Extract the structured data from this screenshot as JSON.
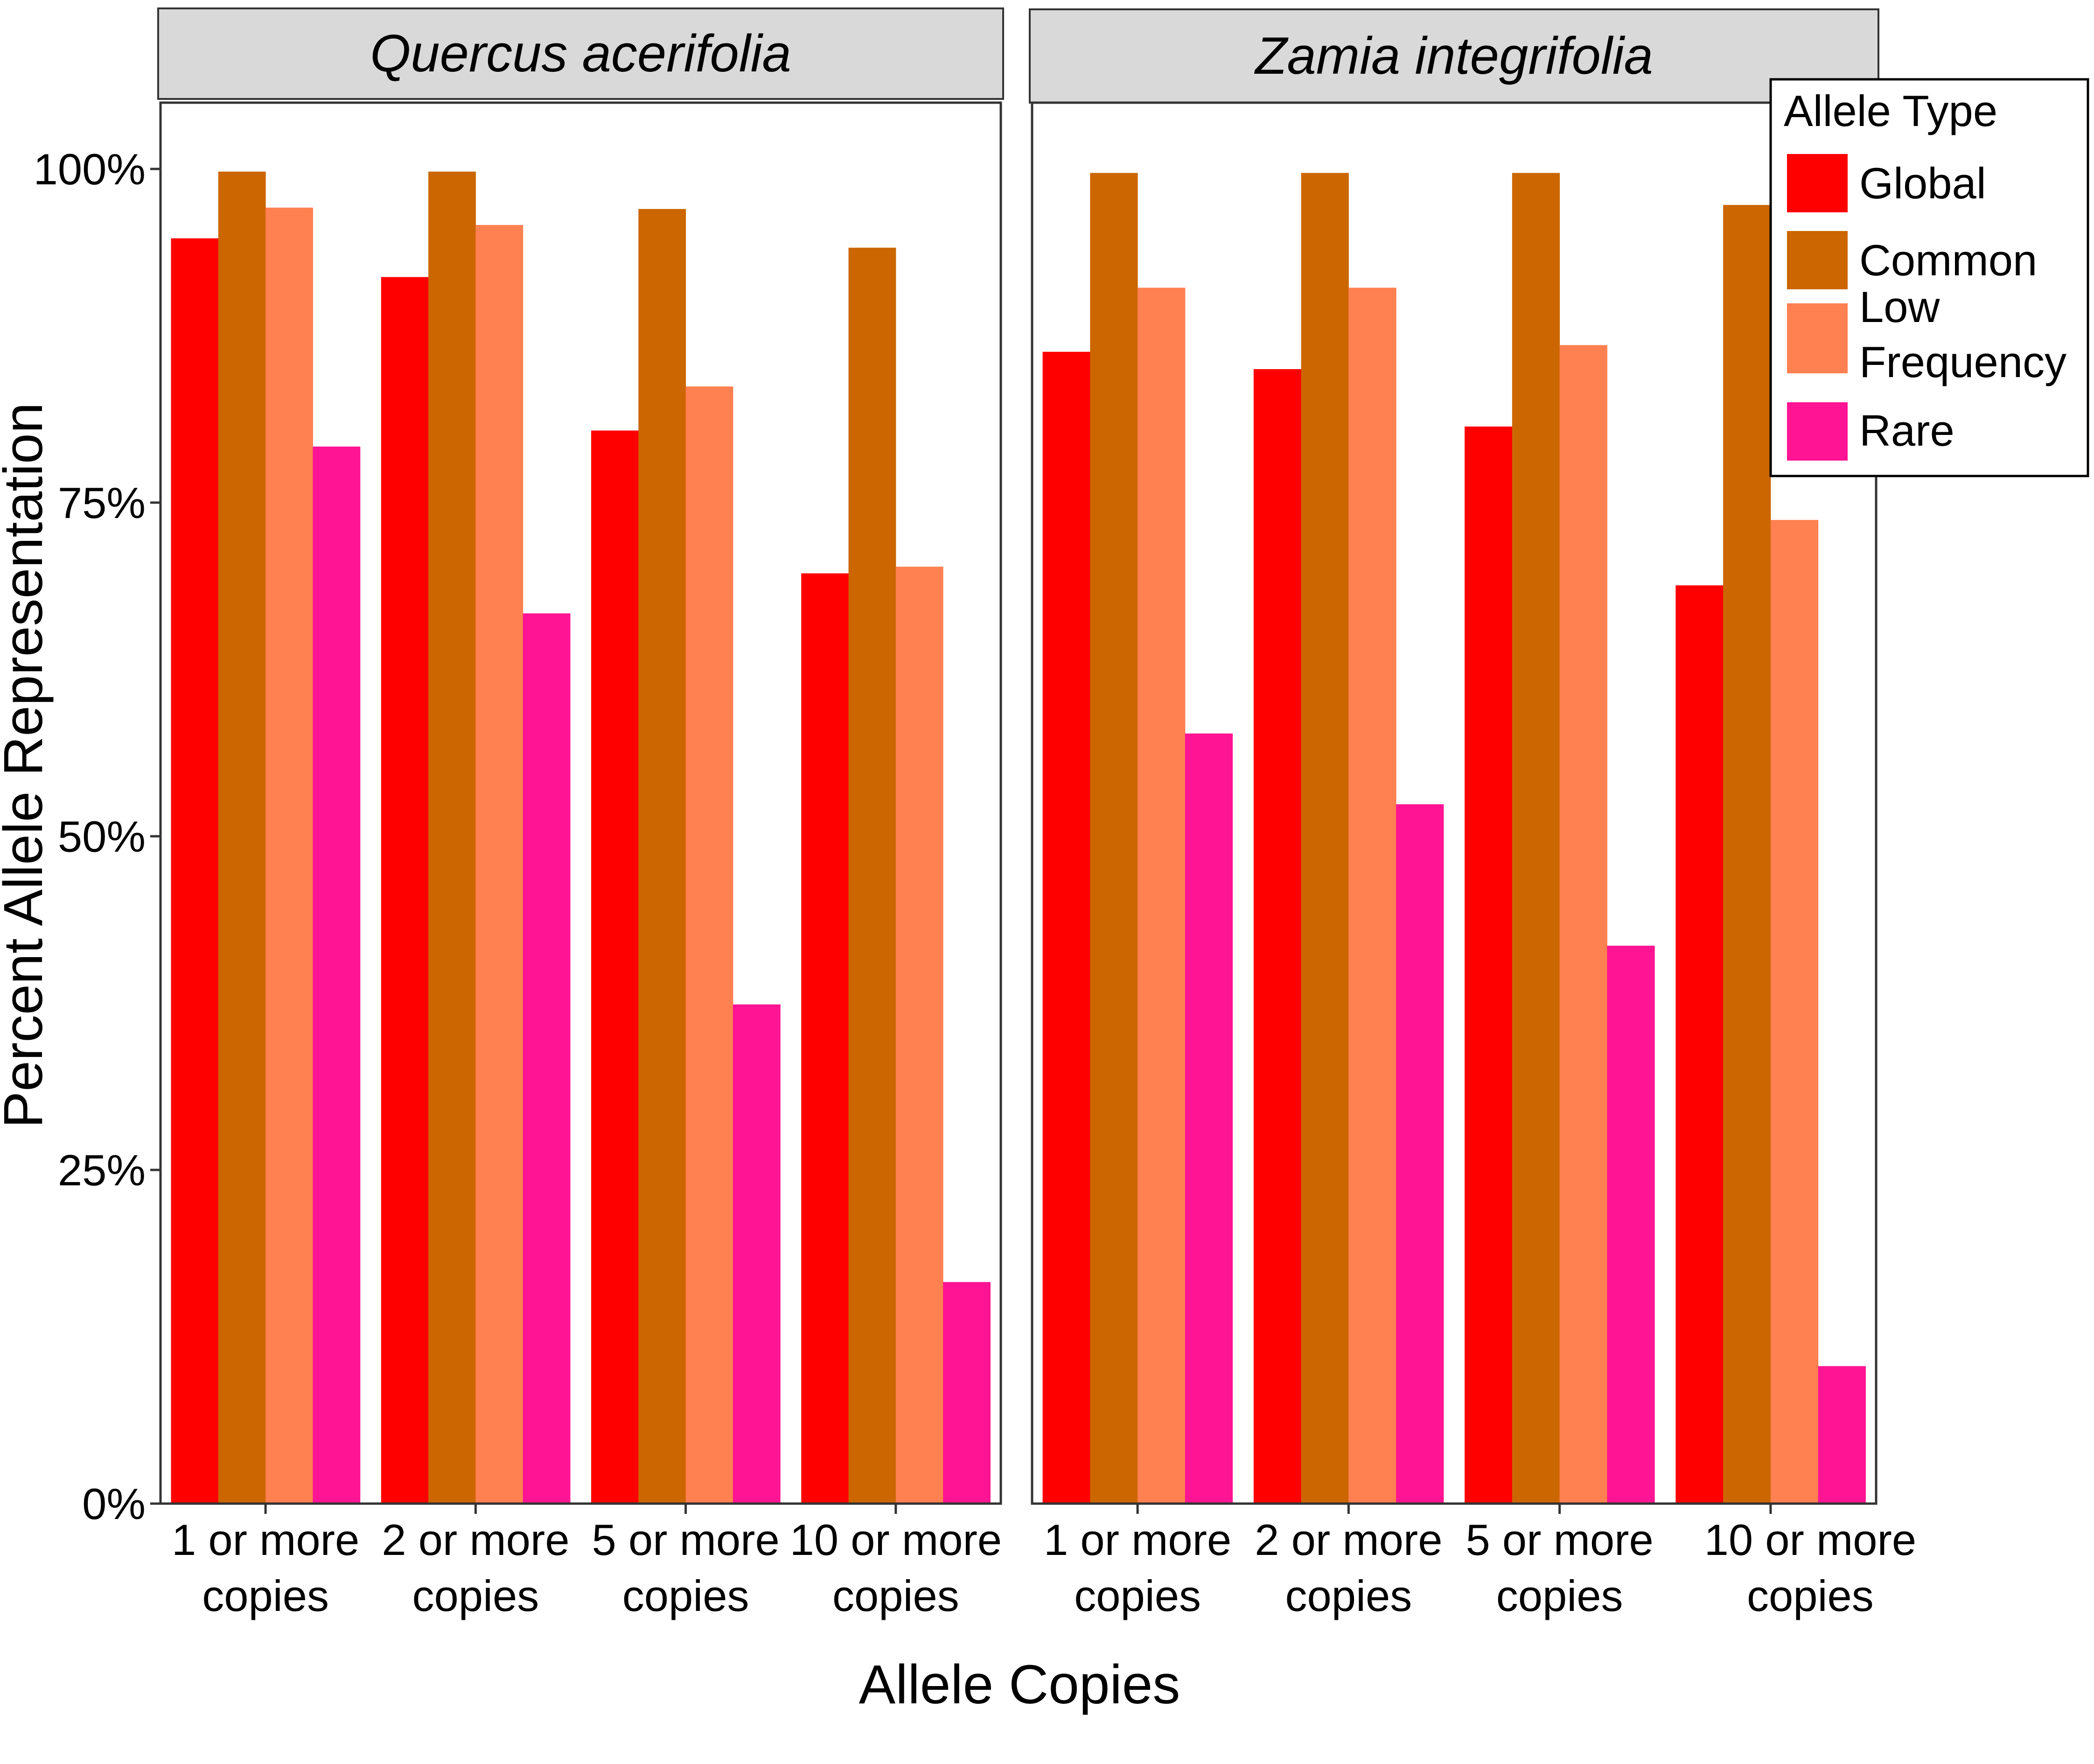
{
  "chart_data": {
    "type": "bar",
    "ylabel": "Percent Allele Representation",
    "xlabel": "Allele Copies",
    "ylim": [
      0,
      1.05
    ],
    "y_ticks": [
      0,
      0.25,
      0.5,
      0.75,
      1.0
    ],
    "y_tick_labels": [
      "0%",
      "25%",
      "50%",
      "75%",
      "100%"
    ],
    "grid": false,
    "legend": {
      "title": "Allele Type",
      "placement": "top-right",
      "items": [
        {
          "name": "Global",
          "color": "#ff0000"
        },
        {
          "name": "Common",
          "color": "#cc6600"
        },
        {
          "name": "Low\nFrequency",
          "color": "#ff8050"
        },
        {
          "name": "Rare",
          "color": "#ff1493"
        }
      ]
    },
    "categories": [
      "1 or more\ncopies",
      "2 or more\ncopies",
      "5 or more\ncopies",
      "10 or more\ncopies"
    ],
    "panels": [
      {
        "title": "Quercus acerifolia",
        "series": [
          {
            "name": "Global",
            "values": [
              0.948,
              0.919,
              0.804,
              0.697
            ]
          },
          {
            "name": "Common",
            "values": [
              0.998,
              0.998,
              0.97,
              0.941
            ]
          },
          {
            "name": "Low\nFrequency",
            "values": [
              0.971,
              0.958,
              0.837,
              0.702
            ]
          },
          {
            "name": "Rare",
            "values": [
              0.792,
              0.667,
              0.374,
              0.166
            ]
          }
        ]
      },
      {
        "title": "Zamia integrifolia",
        "series": [
          {
            "name": "Global",
            "values": [
              0.863,
              0.85,
              0.807,
              0.688
            ]
          },
          {
            "name": "Common",
            "values": [
              0.997,
              0.997,
              0.997,
              0.973
            ]
          },
          {
            "name": "Low\nFrequency",
            "values": [
              0.911,
              0.911,
              0.868,
              0.737
            ]
          },
          {
            "name": "Rare",
            "values": [
              0.577,
              0.524,
              0.418,
              0.103
            ]
          }
        ]
      }
    ]
  }
}
